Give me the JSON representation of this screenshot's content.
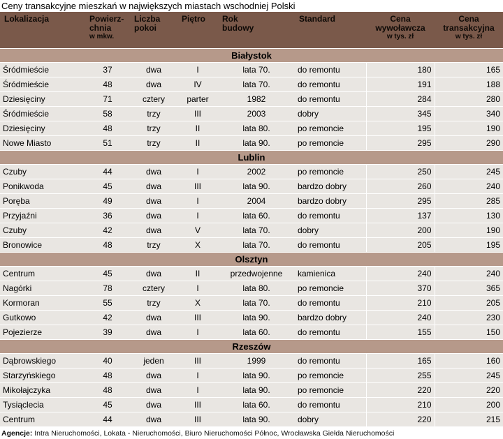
{
  "title": "Ceny transakcyjne mieszkań w największych miastach wschodniej Polski",
  "colors": {
    "header_bg": "#7a594a",
    "section_bg": "#b6998a",
    "row_bg": "#e9e6e2",
    "line": "#ffffff"
  },
  "chart_data": {
    "type": "table",
    "columns": [
      {
        "label": "Lokalizacja",
        "sub": ""
      },
      {
        "label": "Powierz-\nchnia",
        "sub": "w mkw."
      },
      {
        "label": "Liczba\npokoi",
        "sub": ""
      },
      {
        "label": "Piętro",
        "sub": ""
      },
      {
        "label": "Rok\nbudowy",
        "sub": ""
      },
      {
        "label": "Standard",
        "sub": ""
      },
      {
        "label": "Cena\nwywoławcza",
        "sub": "w tys. zł"
      },
      {
        "label": "Cena\ntransakcyjna",
        "sub": "w tys. zł"
      }
    ],
    "sections": [
      {
        "city": "Białystok",
        "rows": [
          [
            "Śródmieście",
            "37",
            "dwa",
            "I",
            "lata 70.",
            "do remontu",
            "180",
            "165"
          ],
          [
            "Śródmieście",
            "48",
            "dwa",
            "IV",
            "lata 70.",
            "do remontu",
            "191",
            "188"
          ],
          [
            "Dziesięciny",
            "71",
            "cztery",
            "parter",
            "1982",
            "do remontu",
            "284",
            "280"
          ],
          [
            "Śródmieście",
            "58",
            "trzy",
            "III",
            "2003",
            "dobry",
            "345",
            "340"
          ],
          [
            "Dziesięciny",
            "48",
            "trzy",
            "II",
            "lata 80.",
            "po remoncie",
            "195",
            "190"
          ],
          [
            "Nowe Miasto",
            "51",
            "trzy",
            "II",
            "lata 90.",
            "po remoncie",
            "295",
            "290"
          ]
        ]
      },
      {
        "city": "Lublin",
        "rows": [
          [
            "Czuby",
            "44",
            "dwa",
            "I",
            "2002",
            "po remoncie",
            "250",
            "245"
          ],
          [
            "Ponikwoda",
            "45",
            "dwa",
            "III",
            "lata 90.",
            "bardzo dobry",
            "260",
            "240"
          ],
          [
            "Poręba",
            "49",
            "dwa",
            "I",
            "2004",
            "bardzo dobry",
            "295",
            "285"
          ],
          [
            "Przyjaźni",
            "36",
            "dwa",
            "I",
            "lata 60.",
            "do remontu",
            "137",
            "130"
          ],
          [
            "Czuby",
            "42",
            "dwa",
            "V",
            "lata 70.",
            "dobry",
            "200",
            "190"
          ],
          [
            "Bronowice",
            "48",
            "trzy",
            "X",
            "lata 70.",
            "do remontu",
            "205",
            "195"
          ]
        ]
      },
      {
        "city": "Olsztyn",
        "rows": [
          [
            "Centrum",
            "45",
            "dwa",
            "II",
            "przedwojenne",
            "kamienica",
            "240",
            "240"
          ],
          [
            "Nagórki",
            "78",
            "cztery",
            "I",
            "lata 80.",
            "po remoncie",
            "370",
            "365"
          ],
          [
            "Kormoran",
            "55",
            "trzy",
            "X",
            "lata 70.",
            "do remontu",
            "210",
            "205"
          ],
          [
            "Gutkowo",
            "42",
            "dwa",
            "III",
            "lata 90.",
            "bardzo dobry",
            "240",
            "230"
          ],
          [
            "Pojezierze",
            "39",
            "dwa",
            "I",
            "lata 60.",
            "do remontu",
            "155",
            "150"
          ]
        ]
      },
      {
        "city": "Rzeszów",
        "rows": [
          [
            "Dąbrowskiego",
            "40",
            "jeden",
            "III",
            "1999",
            "do remontu",
            "165",
            "160"
          ],
          [
            "Starzyńskiego",
            "48",
            "dwa",
            "I",
            "lata 90.",
            "po remoncie",
            "255",
            "245"
          ],
          [
            "Mikołajczyka",
            "48",
            "dwa",
            "I",
            "lata 90.",
            "po remoncie",
            "220",
            "220"
          ],
          [
            "Tysiąclecia",
            "45",
            "dwa",
            "III",
            "lata 60.",
            "do remontu",
            "210",
            "200"
          ],
          [
            "Centrum",
            "44",
            "dwa",
            "III",
            "lata 90.",
            "dobry",
            "220",
            "215"
          ]
        ]
      }
    ]
  },
  "footer": {
    "label": "Agencje:",
    "text": "Intra Nieruchomości, Lokata - Nieruchomości,  Biuro Nieruchomości Północ,  Wrocławska Giełda Nieruchomości"
  }
}
